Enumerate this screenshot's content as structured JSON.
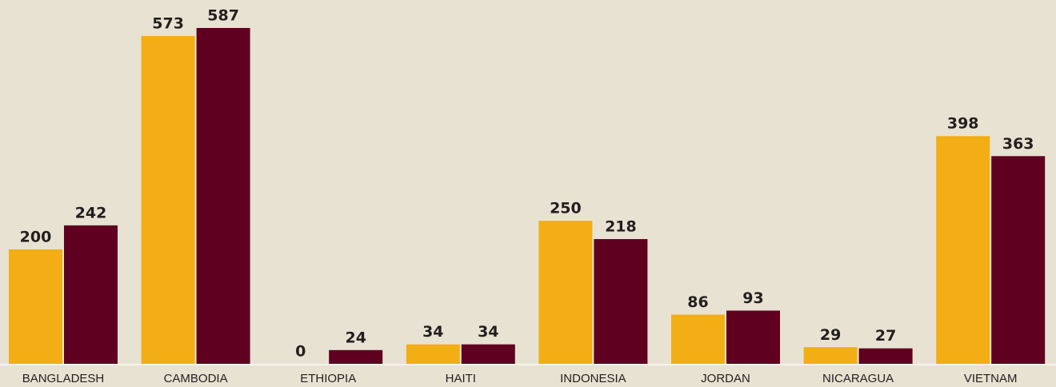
{
  "chart_data": {
    "type": "bar",
    "categories": [
      "BANGLADESH",
      "CAMBODIA",
      "ETHIOPIA",
      "HAITI",
      "INDONESIA",
      "JORDAN",
      "NICARAGUA",
      "VIETNAM"
    ],
    "series": [
      {
        "color": "#f2ae14",
        "values": [
          200,
          573,
          0,
          34,
          250,
          86,
          29,
          398
        ]
      },
      {
        "color": "#5f0020",
        "values": [
          242,
          587,
          24,
          34,
          218,
          93,
          27,
          363
        ]
      }
    ]
  }
}
